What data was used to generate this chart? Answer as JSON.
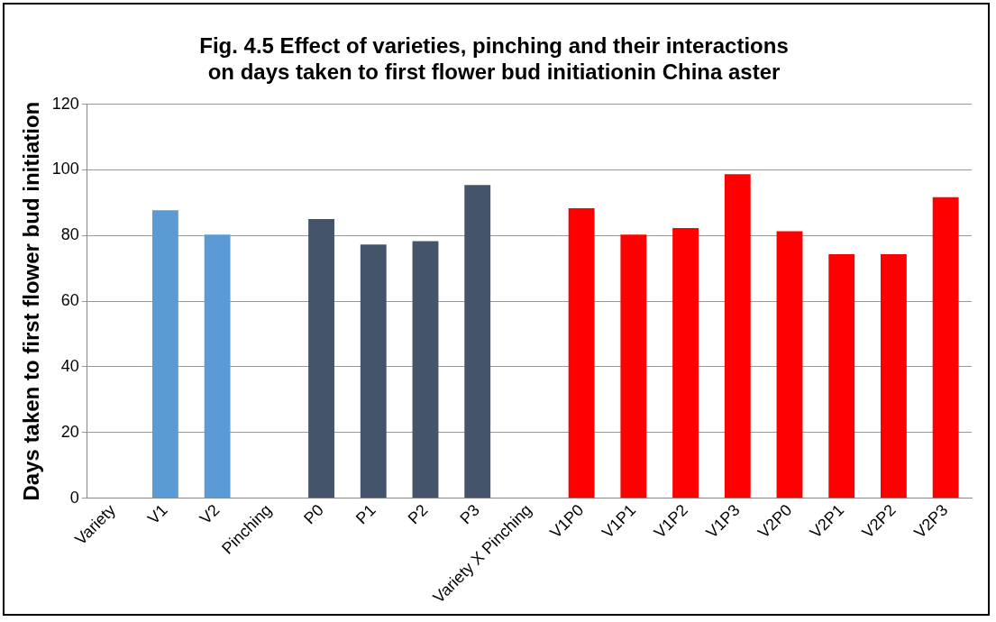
{
  "chart_data": {
    "type": "bar",
    "title": "Fig. 4.5 Effect of varieties, pinching and their interactions on days taken to first flower bud initiationin China aster",
    "ylabel": "Days taken to first flower bud initiation",
    "categories": [
      "Variety",
      "V1",
      "V2",
      "Pinching",
      "P0",
      "P1",
      "P2",
      "P3",
      "Variety X Pinching",
      "V1P0",
      "V1P1",
      "V1P2",
      "V1P3",
      "V2P0",
      "V2P1",
      "V2P2",
      "V2P3"
    ],
    "values": [
      null,
      87.7,
      80.3,
      null,
      85,
      77.3,
      78.3,
      95.4,
      null,
      88.3,
      80.3,
      82.3,
      98.7,
      81.3,
      74.3,
      74.3,
      91.7
    ],
    "colors": [
      "#5b9bd5",
      "#5b9bd5",
      "#5b9bd5",
      "#44546a",
      "#44546a",
      "#44546a",
      "#44546a",
      "#44546a",
      "#ff0000",
      "#ff0000",
      "#ff0000",
      "#ff0000",
      "#ff0000",
      "#ff0000",
      "#ff0000",
      "#ff0000",
      "#ff0000"
    ],
    "ylim": [
      0,
      120
    ],
    "yticks": [
      0,
      20,
      40,
      60,
      80,
      100,
      120
    ],
    "grid": "y"
  }
}
